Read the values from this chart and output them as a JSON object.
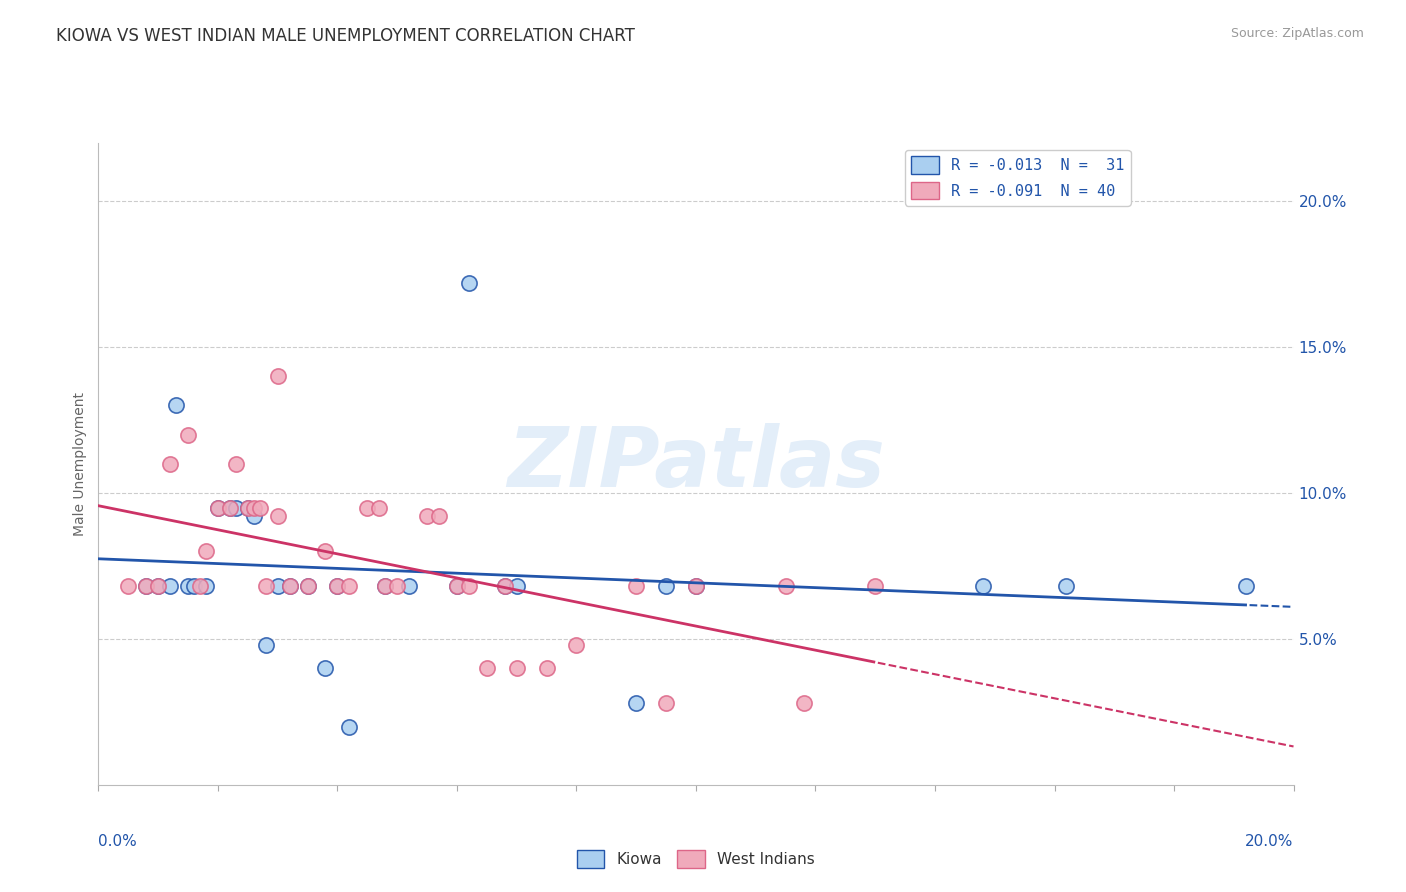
{
  "title": "KIOWA VS WEST INDIAN MALE UNEMPLOYMENT CORRELATION CHART",
  "source": "Source: ZipAtlas.com",
  "ylabel": "Male Unemployment",
  "xlim": [
    0.0,
    0.2
  ],
  "ylim": [
    0.0,
    0.22
  ],
  "yticks": [
    0.05,
    0.1,
    0.15,
    0.2
  ],
  "ytick_labels": [
    "5.0%",
    "10.0%",
    "15.0%",
    "20.0%"
  ],
  "legend_entries": [
    {
      "label": "R = -0.013  N =  31"
    },
    {
      "label": "R = -0.091  N = 40"
    }
  ],
  "legend_bottom": [
    "Kiowa",
    "West Indians"
  ],
  "legend_colors": [
    "#aacff0",
    "#f0aabb"
  ],
  "kiowa_color": "#6699cc",
  "west_indian_color": "#dd6688",
  "kiowa_line_color": "#2255aa",
  "west_indian_line_color": "#cc3366",
  "kiowa_scatter": [
    [
      0.008,
      0.068
    ],
    [
      0.01,
      0.068
    ],
    [
      0.012,
      0.068
    ],
    [
      0.013,
      0.13
    ],
    [
      0.015,
      0.068
    ],
    [
      0.016,
      0.068
    ],
    [
      0.018,
      0.068
    ],
    [
      0.02,
      0.095
    ],
    [
      0.022,
      0.095
    ],
    [
      0.023,
      0.095
    ],
    [
      0.025,
      0.095
    ],
    [
      0.026,
      0.092
    ],
    [
      0.028,
      0.048
    ],
    [
      0.03,
      0.068
    ],
    [
      0.032,
      0.068
    ],
    [
      0.035,
      0.068
    ],
    [
      0.038,
      0.04
    ],
    [
      0.04,
      0.068
    ],
    [
      0.042,
      0.02
    ],
    [
      0.048,
      0.068
    ],
    [
      0.052,
      0.068
    ],
    [
      0.06,
      0.068
    ],
    [
      0.062,
      0.172
    ],
    [
      0.068,
      0.068
    ],
    [
      0.07,
      0.068
    ],
    [
      0.09,
      0.028
    ],
    [
      0.095,
      0.068
    ],
    [
      0.1,
      0.068
    ],
    [
      0.148,
      0.068
    ],
    [
      0.162,
      0.068
    ],
    [
      0.192,
      0.068
    ]
  ],
  "west_indian_scatter": [
    [
      0.005,
      0.068
    ],
    [
      0.008,
      0.068
    ],
    [
      0.01,
      0.068
    ],
    [
      0.012,
      0.11
    ],
    [
      0.015,
      0.12
    ],
    [
      0.017,
      0.068
    ],
    [
      0.018,
      0.08
    ],
    [
      0.02,
      0.095
    ],
    [
      0.022,
      0.095
    ],
    [
      0.023,
      0.11
    ],
    [
      0.025,
      0.095
    ],
    [
      0.026,
      0.095
    ],
    [
      0.027,
      0.095
    ],
    [
      0.028,
      0.068
    ],
    [
      0.03,
      0.092
    ],
    [
      0.03,
      0.14
    ],
    [
      0.032,
      0.068
    ],
    [
      0.035,
      0.068
    ],
    [
      0.038,
      0.08
    ],
    [
      0.04,
      0.068
    ],
    [
      0.042,
      0.068
    ],
    [
      0.045,
      0.095
    ],
    [
      0.047,
      0.095
    ],
    [
      0.048,
      0.068
    ],
    [
      0.05,
      0.068
    ],
    [
      0.055,
      0.092
    ],
    [
      0.057,
      0.092
    ],
    [
      0.06,
      0.068
    ],
    [
      0.062,
      0.068
    ],
    [
      0.065,
      0.04
    ],
    [
      0.068,
      0.068
    ],
    [
      0.07,
      0.04
    ],
    [
      0.075,
      0.04
    ],
    [
      0.08,
      0.048
    ],
    [
      0.09,
      0.068
    ],
    [
      0.095,
      0.028
    ],
    [
      0.1,
      0.068
    ],
    [
      0.115,
      0.068
    ],
    [
      0.118,
      0.028
    ],
    [
      0.13,
      0.068
    ]
  ],
  "title_fontsize": 12,
  "axis_label_fontsize": 10,
  "tick_fontsize": 11,
  "scatter_size": 120,
  "watermark_text": "ZIPatlas",
  "background_color": "#ffffff",
  "grid_color": "#cccccc"
}
